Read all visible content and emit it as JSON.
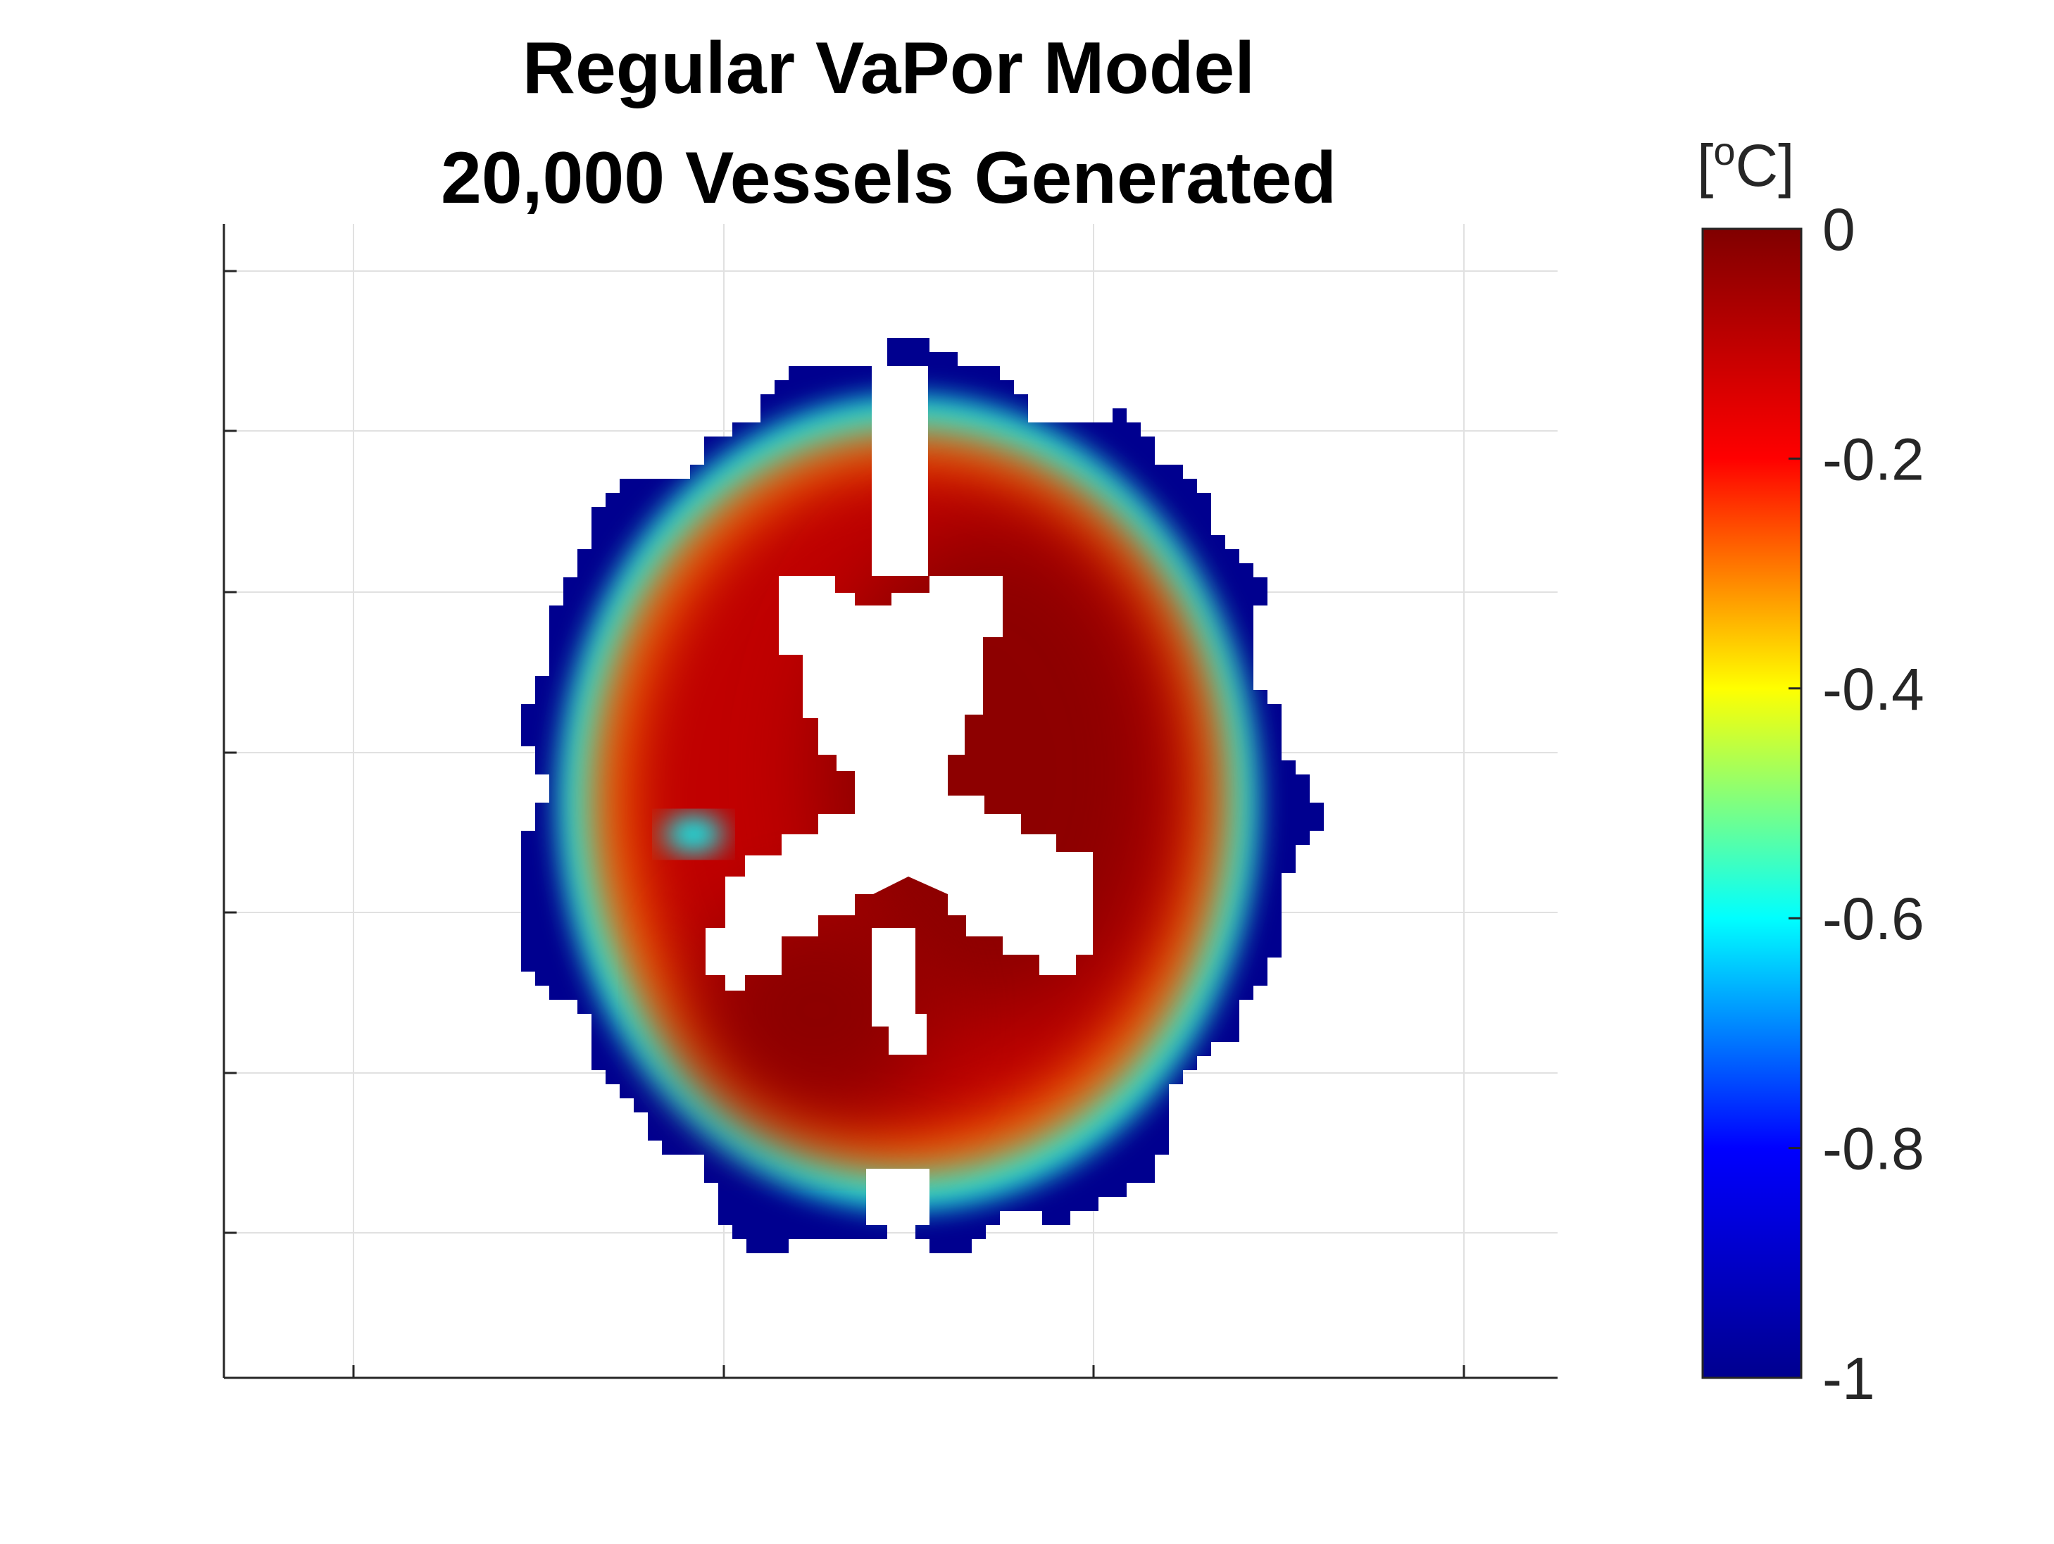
{
  "chart_data": {
    "type": "heatmap",
    "title": [
      "Regular VaPor Model",
      "20,000 Vessels Generated"
    ],
    "xlabel": "",
    "ylabel": "",
    "grid": true,
    "colormap": "jet",
    "colorbar": {
      "label": "[°C]",
      "label_prefix": "[",
      "label_degree": "o",
      "label_suffix": "C]",
      "range": [
        -1,
        0
      ],
      "ticks": [
        0,
        -0.2,
        -0.4,
        -0.6,
        -0.8,
        -1
      ],
      "tick_labels": [
        "0",
        "-0.2",
        "-0.4",
        "-0.6",
        "-0.8",
        "-1"
      ],
      "colors": [
        "#00008f",
        "#0000ff",
        "#00ffff",
        "#ffff00",
        "#ff0000",
        "#800000"
      ]
    },
    "map_content": "axial brain slice temperature change",
    "value_summary": {
      "outer_rim": -1,
      "near_rim": -0.6,
      "middle_band": -0.3,
      "interior": -0.1,
      "deep_center": -0.02
    }
  }
}
